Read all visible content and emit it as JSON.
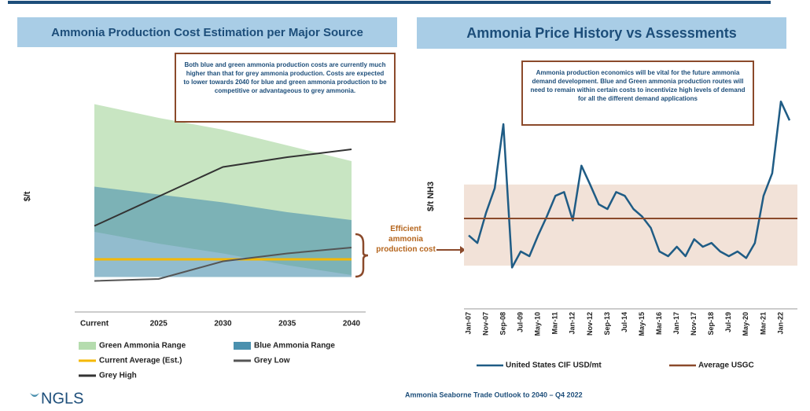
{
  "header": {
    "left_title": "Ammonia Production Cost Estimation per Major Source",
    "right_title": "Ammonia Price History vs Assessments"
  },
  "notes": {
    "left": "Both blue and green ammonia production costs are currently much higher than that for grey ammonia production. Costs are expected to lower towards 2040 for blue and green ammonia production to be competitive or advantageous to grey ammonia.",
    "right": "Ammonia production economics will be vital for the future ammonia demand development. Blue and Green ammonia production routes will need to remain within certain costs to incentivize high levels of demand for all the different demand applications",
    "middle": "Efficient ammonia production cost"
  },
  "footer": {
    "text": "Ammonia Seaborne Trade Outlook to 2040 – Q4 2022",
    "logo": "NGLS"
  },
  "chart_data": [
    {
      "type": "area",
      "y_label": "$/t",
      "categories": [
        "Current",
        "2025",
        "2030",
        "2035",
        "2040"
      ],
      "ylim": [
        0,
        100
      ],
      "series": [
        {
          "name": "Green Ammonia Range",
          "color": "#b5dcae",
          "kind": "range",
          "values": [
            95,
            88,
            82,
            74,
            66
          ],
          "lower": [
            30,
            24,
            19,
            13,
            8
          ]
        },
        {
          "name": "Blue Ammonia Range",
          "color": "#4a90ae",
          "kind": "range",
          "values": [
            53,
            49,
            45,
            40,
            36
          ],
          "lower": [
            7,
            7,
            7,
            7,
            7
          ]
        },
        {
          "name": "Current Average (Est.)",
          "color": "#f5b800",
          "kind": "line",
          "values": [
            16,
            16,
            16,
            16,
            16
          ]
        },
        {
          "name": "Grey Low",
          "color": "#555555",
          "kind": "line",
          "values": [
            5,
            6,
            15,
            19,
            22
          ]
        },
        {
          "name": "Grey High",
          "color": "#333333",
          "kind": "line",
          "values": [
            33,
            48,
            63,
            68,
            72
          ]
        }
      ]
    },
    {
      "type": "line",
      "y_label": "$/t NH3",
      "categories": [
        "Jan-07",
        null,
        "Nov-07",
        null,
        "Sep-08",
        null,
        "Jul-09",
        null,
        "May-10",
        null,
        "Mar-11",
        null,
        "Jan-12",
        null,
        "Nov-12",
        null,
        "Sep-13",
        null,
        "Jul-14",
        null,
        "May-15",
        null,
        "Mar-16",
        null,
        "Jan-17",
        null,
        "Nov-17",
        null,
        "Sep-18",
        null,
        "Jul-19",
        null,
        "May-20",
        null,
        "Mar-21",
        null,
        "Jan-22",
        null
      ],
      "ylim": [
        0,
        100
      ],
      "band": [
        5,
        48
      ],
      "band_color": "#f2e2d8",
      "series": [
        {
          "name": "United States CIF USD/mt",
          "color": "#1f5c85",
          "values": [
            21,
            17,
            33,
            46,
            80,
            4,
            12.5,
            10,
            21,
            31,
            42,
            44,
            29,
            58,
            48,
            37.5,
            35,
            44,
            42,
            35,
            31,
            25,
            12.5,
            10,
            15,
            10,
            19,
            15,
            17,
            12.5,
            10,
            12.5,
            9,
            17,
            42,
            54,
            92,
            82
          ]
        },
        {
          "name": "Average USGC",
          "color": "#8b4a2b",
          "value": 30
        }
      ]
    }
  ]
}
